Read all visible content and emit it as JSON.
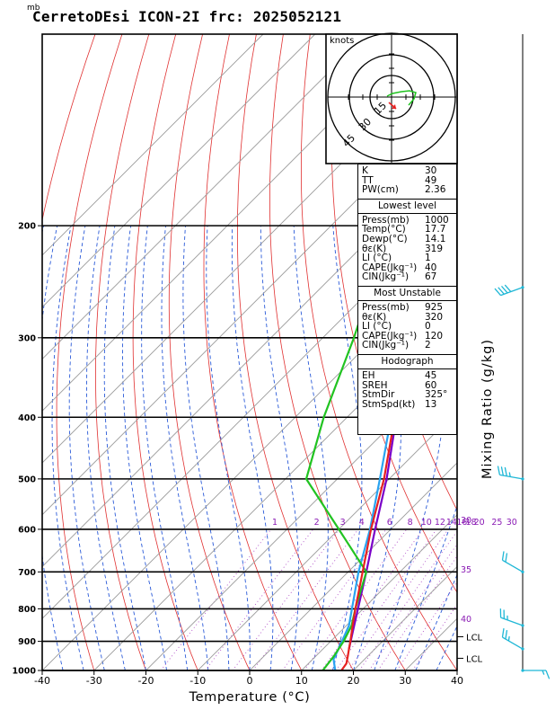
{
  "header": {
    "title": "CerretoDEsi ICON-2I frc: 2025052121",
    "pressure_unit": "mb"
  },
  "hodograph": {
    "unit_label": "knots",
    "ring_labels": [
      "15",
      "30",
      "45"
    ]
  },
  "indices": {
    "top": [
      {
        "label": "K",
        "value": "30"
      },
      {
        "label": "TT",
        "value": "49"
      },
      {
        "label": "PW(cm)",
        "value": "2.36"
      }
    ],
    "lowest_level": {
      "heading": "Lowest level",
      "rows": [
        {
          "label": "Press(mb)",
          "value": "1000"
        },
        {
          "label": "Temp(°C)",
          "value": "17.7"
        },
        {
          "label": "Dewp(°C)",
          "value": "14.1"
        },
        {
          "label": "θε(K)",
          "value": "319"
        },
        {
          "label": "LI (°C)",
          "value": "1"
        },
        {
          "label": "CAPE(Jkg⁻¹)",
          "value": "40"
        },
        {
          "label": "CIN(Jkg⁻¹)",
          "value": "67"
        }
      ]
    },
    "most_unstable": {
      "heading": "Most Unstable",
      "rows": [
        {
          "label": "Press(mb)",
          "value": "925"
        },
        {
          "label": "θε(K)",
          "value": "320"
        },
        {
          "label": "LI (°C)",
          "value": "0"
        },
        {
          "label": "CAPE(Jkg⁻¹)",
          "value": "120"
        },
        {
          "label": "CIN(Jkg⁻¹)",
          "value": "2"
        }
      ]
    },
    "hodo": {
      "heading": "Hodograph",
      "rows": [
        {
          "label": "EH",
          "value": "45"
        },
        {
          "label": "SREH",
          "value": "60"
        },
        {
          "label": "StmDir",
          "value": "325°"
        },
        {
          "label": "StmSpd(kt)",
          "value": "13"
        }
      ]
    }
  },
  "chart_data": {
    "type": "line",
    "subtype": "skew-T log-P",
    "xlabel": "Temperature (°C)",
    "ylabel_right": "Mixing Ratio (g/kg)",
    "xlim": [
      -40,
      40
    ],
    "ylim_pressure": [
      1000,
      100
    ],
    "x_ticks": [
      -40,
      -30,
      -20,
      -10,
      0,
      10,
      20,
      30,
      40
    ],
    "pressure_ticks": [
      1000,
      900,
      800,
      700,
      600,
      500,
      400,
      300,
      200
    ],
    "mixing_ratio_labels": [
      "1",
      "2",
      "3",
      "4",
      "6",
      "8",
      "10",
      "12",
      "14",
      "16",
      "18",
      "20",
      "25",
      "30"
    ],
    "theta_e_labels": [
      "30",
      "35",
      "40"
    ],
    "lcl_labels": [
      "LCL",
      "LCL"
    ],
    "lcl_pressures": [
      888,
      960
    ],
    "temperature": {
      "color": "#e62020",
      "points": [
        [
          1000,
          17.7
        ],
        [
          975,
          17.3
        ],
        [
          950,
          16.2
        ],
        [
          925,
          15.0
        ],
        [
          900,
          13.8
        ],
        [
          850,
          11.2
        ],
        [
          800,
          8.5
        ],
        [
          700,
          2.8
        ],
        [
          600,
          -3.8
        ],
        [
          500,
          -11.0
        ],
        [
          400,
          -20.8
        ],
        [
          300,
          -33.5
        ],
        [
          250,
          -41.5
        ]
      ]
    },
    "dewpoint": {
      "color": "#21c321",
      "points": [
        [
          1000,
          14.1
        ],
        [
          950,
          13.5
        ],
        [
          900,
          12.5
        ],
        [
          850,
          11.0
        ],
        [
          800,
          8.5
        ],
        [
          700,
          3.5
        ],
        [
          600,
          -10.0
        ],
        [
          500,
          -26.0
        ],
        [
          400,
          -34.5
        ],
        [
          300,
          -44.0
        ],
        [
          250,
          -50.5
        ]
      ]
    },
    "parcel": {
      "color": "#7a00c8",
      "points": [
        [
          925,
          15.0
        ],
        [
          850,
          11.5
        ],
        [
          800,
          9.0
        ],
        [
          700,
          3.5
        ],
        [
          600,
          -3.0
        ],
        [
          500,
          -10.5
        ],
        [
          400,
          -20.5
        ],
        [
          300,
          -34.0
        ],
        [
          200,
          -54.0
        ],
        [
          150,
          -66.0
        ],
        [
          110,
          -78.0
        ]
      ]
    },
    "virtual_parcel": {
      "color": "#29a3f0",
      "points": [
        [
          1000,
          16.5
        ],
        [
          960,
          14.0
        ],
        [
          925,
          13.0
        ],
        [
          850,
          10.5
        ],
        [
          700,
          2.0
        ],
        [
          600,
          -4.0
        ],
        [
          500,
          -11.8
        ],
        [
          400,
          -21.5
        ],
        [
          300,
          -35.2
        ],
        [
          200,
          -55.5
        ],
        [
          150,
          -67.5
        ],
        [
          110,
          -79.5
        ]
      ]
    },
    "wind_barbs": [
      {
        "p": 1000,
        "dir": 90,
        "spd_kt": 5
      },
      {
        "p": 925,
        "dir": 300,
        "spd_kt": 15
      },
      {
        "p": 850,
        "dir": 290,
        "spd_kt": 15
      },
      {
        "p": 700,
        "dir": 300,
        "spd_kt": 20
      },
      {
        "p": 500,
        "dir": 280,
        "spd_kt": 25
      },
      {
        "p": 250,
        "dir": 250,
        "spd_kt": 40
      }
    ]
  }
}
